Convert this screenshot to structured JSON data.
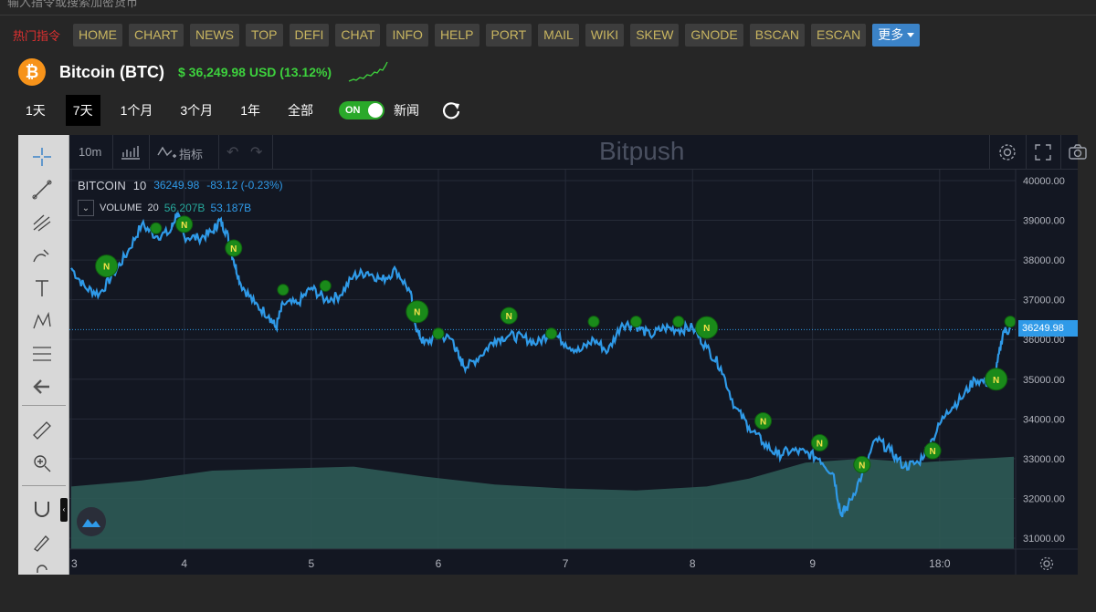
{
  "search": {
    "placeholder": "输入指令或搜索加密货币"
  },
  "nav": {
    "hot_label": "热门指令",
    "items": [
      "HOME",
      "CHART",
      "NEWS",
      "TOP",
      "DEFI",
      "CHAT",
      "INFO",
      "HELP",
      "PORT",
      "MAIL",
      "WIKI",
      "SKEW",
      "GNODE",
      "BSCAN",
      "ESCAN"
    ],
    "more_label": "更多"
  },
  "coin": {
    "symbol_glyph": "₿",
    "name": "Bitcoin (BTC)",
    "price_text": "$ 36,249.98 USD (13.12%)"
  },
  "ranges": {
    "items": [
      "1天",
      "7天",
      "1个月",
      "3个月",
      "1年",
      "全部"
    ],
    "active": "7天"
  },
  "news_toggle": {
    "state": "ON",
    "label": "新闻"
  },
  "chart_toolbar": {
    "interval": "10m",
    "indicators_label": "指标",
    "watermark": "Bitpush"
  },
  "legend": {
    "symbol": "BITCOIN",
    "interval": "10",
    "last": "36249.98",
    "change": "-83.12 (-0.23%)",
    "volume_label": "VOLUME",
    "volume_period": "20",
    "volume_a": "56.207B",
    "volume_b": "53.187B"
  },
  "colors": {
    "line": "#2f9ae8",
    "volume_fill": "#2e5a55",
    "news_marker": "#1a8a1a",
    "accent": "#3b83c8"
  },
  "chart_data": {
    "type": "line",
    "ylim": [
      31000,
      40000
    ],
    "y_ticks": [
      "40000.00",
      "39000.00",
      "38000.00",
      "37000.00",
      "36000.00",
      "35000.00",
      "34000.00",
      "33000.00",
      "32000.00",
      "31000.00"
    ],
    "x_ticks": [
      "3",
      "4",
      "5",
      "6",
      "7",
      "8",
      "9",
      "18:0"
    ],
    "last_price_label": "36249.98",
    "series": [
      {
        "values": [
          [
            2.0,
            37800
          ],
          [
            2.2,
            37300
          ],
          [
            2.4,
            37150
          ],
          [
            2.6,
            37650
          ],
          [
            2.8,
            38200
          ],
          [
            3.0,
            38900
          ],
          [
            3.2,
            38600
          ],
          [
            3.4,
            38700
          ],
          [
            3.5,
            39200
          ],
          [
            3.6,
            38600
          ],
          [
            3.8,
            38550
          ],
          [
            4.0,
            38700
          ],
          [
            4.1,
            39000
          ],
          [
            4.2,
            38700
          ],
          [
            4.3,
            38000
          ],
          [
            4.4,
            37400
          ],
          [
            4.6,
            36900
          ],
          [
            4.8,
            36600
          ],
          [
            4.9,
            36300
          ],
          [
            5.0,
            36900
          ],
          [
            5.2,
            36900
          ],
          [
            5.4,
            37300
          ],
          [
            5.6,
            37000
          ],
          [
            5.8,
            37100
          ],
          [
            6.0,
            37600
          ],
          [
            6.2,
            37700
          ],
          [
            6.4,
            37500
          ],
          [
            6.6,
            37750
          ],
          [
            6.8,
            37200
          ],
          [
            6.9,
            36200
          ],
          [
            7.0,
            35900
          ],
          [
            7.2,
            36100
          ],
          [
            7.4,
            36000
          ],
          [
            7.5,
            35500
          ],
          [
            7.6,
            35300
          ],
          [
            7.8,
            35600
          ],
          [
            8.0,
            36000
          ],
          [
            8.2,
            36100
          ],
          [
            8.4,
            36050
          ],
          [
            8.6,
            35900
          ],
          [
            8.8,
            36200
          ],
          [
            9.0,
            35900
          ],
          [
            9.2,
            35700
          ],
          [
            9.4,
            36000
          ],
          [
            9.6,
            35700
          ],
          [
            9.8,
            36400
          ],
          [
            10.0,
            36350
          ],
          [
            10.2,
            36100
          ],
          [
            10.4,
            36300
          ],
          [
            10.6,
            36250
          ],
          [
            10.8,
            36300
          ],
          [
            11.0,
            35800
          ],
          [
            11.2,
            35300
          ],
          [
            11.4,
            34300
          ],
          [
            11.6,
            33800
          ],
          [
            11.8,
            33400
          ],
          [
            12.0,
            33100
          ],
          [
            12.2,
            33200
          ],
          [
            12.4,
            33150
          ],
          [
            12.6,
            33000
          ],
          [
            12.8,
            32600
          ],
          [
            12.9,
            31600
          ],
          [
            13.0,
            31800
          ],
          [
            13.2,
            32600
          ],
          [
            13.4,
            33500
          ],
          [
            13.6,
            33200
          ],
          [
            13.8,
            32800
          ],
          [
            14.0,
            32900
          ],
          [
            14.2,
            33500
          ],
          [
            14.4,
            34200
          ],
          [
            14.6,
            34500
          ],
          [
            14.8,
            35000
          ],
          [
            15.0,
            34900
          ],
          [
            15.1,
            35200
          ],
          [
            15.2,
            36200
          ],
          [
            15.3,
            36250
          ]
        ]
      }
    ],
    "news_markers": [
      {
        "x": 2.5,
        "y": 37850,
        "size": "large"
      },
      {
        "x": 3.2,
        "y": 38800,
        "size": "small"
      },
      {
        "x": 3.6,
        "y": 38900,
        "size": "medium"
      },
      {
        "x": 4.3,
        "y": 38300,
        "size": "medium"
      },
      {
        "x": 5.0,
        "y": 37250,
        "size": "small"
      },
      {
        "x": 5.6,
        "y": 37350,
        "size": "small"
      },
      {
        "x": 6.9,
        "y": 36700,
        "size": "large"
      },
      {
        "x": 7.2,
        "y": 36150,
        "size": "small"
      },
      {
        "x": 8.2,
        "y": 36600,
        "size": "medium"
      },
      {
        "x": 8.8,
        "y": 36150,
        "size": "small"
      },
      {
        "x": 9.4,
        "y": 36450,
        "size": "small"
      },
      {
        "x": 10.0,
        "y": 36450,
        "size": "small"
      },
      {
        "x": 10.6,
        "y": 36450,
        "size": "small"
      },
      {
        "x": 11.0,
        "y": 36300,
        "size": "large"
      },
      {
        "x": 11.8,
        "y": 33950,
        "size": "medium"
      },
      {
        "x": 12.6,
        "y": 33400,
        "size": "medium"
      },
      {
        "x": 13.2,
        "y": 32850,
        "size": "medium"
      },
      {
        "x": 14.2,
        "y": 33200,
        "size": "medium"
      },
      {
        "x": 15.1,
        "y": 35000,
        "size": "large"
      },
      {
        "x": 15.3,
        "y": 36450,
        "size": "small"
      }
    ],
    "x_range": [
      2.0,
      15.35
    ],
    "x_tick_positions": [
      2.0,
      3.6,
      5.4,
      7.2,
      9.0,
      10.8,
      12.5,
      14.3
    ]
  }
}
